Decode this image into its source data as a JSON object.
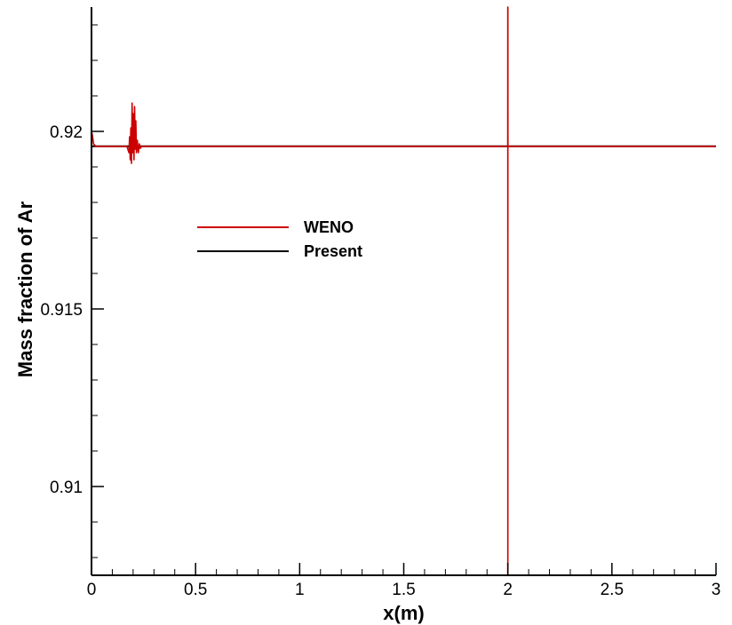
{
  "chart_data": {
    "type": "line",
    "xlabel": "x(m)",
    "ylabel": "Mass fraction of Ar",
    "xlim": [
      0,
      3
    ],
    "ylim": [
      0.9075,
      0.9235
    ],
    "x_ticks": [
      "0",
      "0.5",
      "1",
      "1.5",
      "2",
      "2.5",
      "3"
    ],
    "y_ticks": [
      "0.91",
      "0.915",
      "0.92"
    ],
    "x_tick_values": [
      0,
      0.5,
      1,
      1.5,
      2,
      2.5,
      3
    ],
    "y_tick_values": [
      0.91,
      0.915,
      0.92
    ],
    "grid": false,
    "legend_position": "upper-left",
    "series": [
      {
        "name": "WENO",
        "color": "#cc0000",
        "x": [
          0,
          0.004,
          0.01,
          0.02,
          0.04,
          0.1,
          0.17,
          0.18,
          0.183,
          0.186,
          0.189,
          0.192,
          0.195,
          0.198,
          0.201,
          0.204,
          0.207,
          0.21,
          0.213,
          0.216,
          0.22,
          0.225,
          0.23,
          0.235,
          0.24,
          0.3,
          0.6,
          1.0,
          1.5,
          1.9995,
          1.9998,
          2.0,
          2.0002,
          2.0005,
          2.5,
          3.0
        ],
        "y": [
          0.92,
          0.9199,
          0.91965,
          0.91958,
          0.91958,
          0.91958,
          0.91958,
          0.9194,
          0.91985,
          0.9192,
          0.9201,
          0.9191,
          0.9208,
          0.9194,
          0.9205,
          0.9192,
          0.9207,
          0.9195,
          0.9203,
          0.9194,
          0.91975,
          0.9194,
          0.91965,
          0.91952,
          0.91958,
          0.91958,
          0.91958,
          0.91958,
          0.91958,
          0.91958,
          0.9235,
          0.9075,
          0.9235,
          0.91958,
          0.91958,
          0.91958
        ]
      },
      {
        "name": "Present",
        "color": "#000000",
        "x": [
          0,
          0.01,
          0.5,
          1.0,
          1.5,
          2.0,
          2.5,
          3.0
        ],
        "y": [
          0.91958,
          0.91958,
          0.91958,
          0.91958,
          0.91958,
          0.91958,
          0.91958,
          0.91958
        ]
      }
    ]
  }
}
